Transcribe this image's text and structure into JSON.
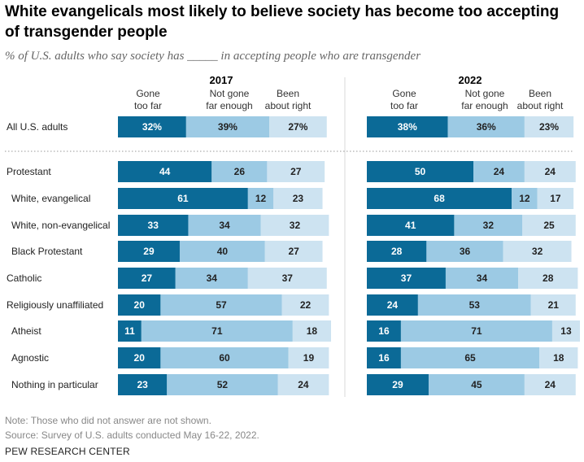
{
  "title": "White evangelicals most likely to believe society has become too accepting of transgender people",
  "subtitle": "% of U.S. adults who say society has _____ in accepting people who are transgender",
  "note": "Note: Those who did not answer are not shown.",
  "source": "Source: Survey of U.S. adults conducted May 16-22, 2022.",
  "brand": "PEW RESEARCH CENTER",
  "colors": {
    "gone_too_far": "#0b6a97",
    "not_far_enough": "#9ccae4",
    "about_right": "#cde3f1"
  },
  "chart_data": [
    {
      "type": "bar",
      "stacked": true,
      "orientation": "horizontal",
      "panel": "2017",
      "categories": [
        "All U.S. adults",
        "Protestant",
        "White, evangelical",
        "White, non-evangelical",
        "Black Protestant",
        "Catholic",
        "Religiously unaffiliated",
        "Atheist",
        "Agnostic",
        "Nothing in particular"
      ],
      "series": [
        {
          "name": "Gone too far",
          "labels": [
            "32%",
            "44",
            "61",
            "33",
            "29",
            "27",
            "20",
            "11",
            "20",
            "23"
          ],
          "values": [
            32,
            44,
            61,
            33,
            29,
            27,
            20,
            11,
            20,
            23
          ]
        },
        {
          "name": "Not gone far enough",
          "labels": [
            "39%",
            "26",
            "12",
            "34",
            "40",
            "34",
            "57",
            "71",
            "60",
            "52"
          ],
          "values": [
            39,
            26,
            12,
            34,
            40,
            34,
            57,
            71,
            60,
            52
          ]
        },
        {
          "name": "Been about right",
          "labels": [
            "27%",
            "27",
            "23",
            "32",
            "27",
            "37",
            "22",
            "18",
            "19",
            "24"
          ],
          "values": [
            27,
            27,
            23,
            32,
            27,
            37,
            22,
            18,
            19,
            24
          ]
        }
      ]
    },
    {
      "type": "bar",
      "stacked": true,
      "orientation": "horizontal",
      "panel": "2022",
      "categories": [
        "All U.S. adults",
        "Protestant",
        "White, evangelical",
        "White, non-evangelical",
        "Black Protestant",
        "Catholic",
        "Religiously unaffiliated",
        "Atheist",
        "Agnostic",
        "Nothing in particular"
      ],
      "series": [
        {
          "name": "Gone too far",
          "labels": [
            "38%",
            "50",
            "68",
            "41",
            "28",
            "37",
            "24",
            "16",
            "16",
            "29"
          ],
          "values": [
            38,
            50,
            68,
            41,
            28,
            37,
            24,
            16,
            16,
            29
          ]
        },
        {
          "name": "Not gone far enough",
          "labels": [
            "36%",
            "24",
            "12",
            "32",
            "36",
            "34",
            "53",
            "71",
            "65",
            "45"
          ],
          "values": [
            36,
            24,
            12,
            32,
            36,
            34,
            53,
            71,
            65,
            45
          ]
        },
        {
          "name": "Been about right",
          "labels": [
            "23%",
            "24",
            "17",
            "25",
            "32",
            "28",
            "21",
            "13",
            "18",
            "24"
          ],
          "values": [
            23,
            24,
            17,
            25,
            32,
            28,
            21,
            13,
            18,
            24
          ]
        }
      ]
    }
  ],
  "column_headers": [
    "Gone\ntoo far",
    "Not gone\nfar enough",
    "Been\nabout right"
  ]
}
